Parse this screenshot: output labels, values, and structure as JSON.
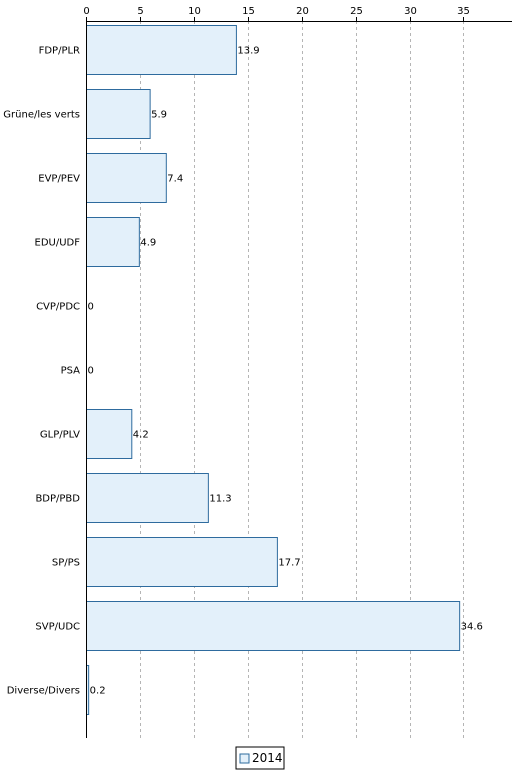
{
  "chart_data": {
    "type": "bar",
    "orientation": "horizontal",
    "categories": [
      "FDP/PLR",
      "Grüne/les verts",
      "EVP/PEV",
      "EDU/UDF",
      "CVP/PDC",
      "PSA",
      "GLP/PLV",
      "BDP/PBD",
      "SP/PS",
      "SVP/UDC",
      "Diverse/Divers"
    ],
    "series": [
      {
        "name": "2014",
        "values": [
          13.9,
          5.9,
          7.4,
          4.9,
          0,
          0,
          4.2,
          11.3,
          17.7,
          34.6,
          0.2
        ],
        "value_labels": [
          "13.9",
          "5.9",
          "7.4",
          "4.9",
          "0",
          "0",
          "4.2",
          "11.3",
          "17.7",
          "34.6",
          "0.2"
        ]
      }
    ],
    "xticks": [
      0,
      5,
      10,
      15,
      20,
      25,
      30,
      35
    ],
    "xtick_labels": [
      "0",
      "5",
      "10",
      "15",
      "20",
      "25",
      "30",
      "35"
    ],
    "xlim": [
      0,
      39.5
    ],
    "axis_position": "top",
    "grid": "vertical dashed",
    "legend": "bottom-center",
    "colors": {
      "bar_fill": "#e3f0fa",
      "bar_stroke": "#2e6b9e",
      "grid": "#b5b5b5",
      "axis": "#000000"
    }
  }
}
